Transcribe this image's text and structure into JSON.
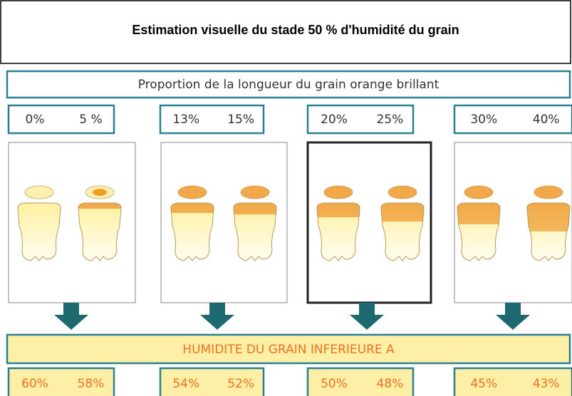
{
  "title": "Estimation visuelle du stade 50 % d'humidité du grain",
  "proportion": {
    "label": "Proportion de la longueur du grain orange brillant",
    "groups": [
      [
        "0%",
        "5 %"
      ],
      [
        "13%",
        "15%"
      ],
      [
        "20%",
        "25%"
      ],
      [
        "30%",
        "40%"
      ]
    ]
  },
  "humidity": {
    "label": "HUMIDITE DU GRAIN INFERIEURE A",
    "groups": [
      [
        "60%",
        "58%"
      ],
      [
        "54%",
        "52%"
      ],
      [
        "50%",
        "48%"
      ],
      [
        "45%",
        "43%"
      ]
    ]
  }
}
